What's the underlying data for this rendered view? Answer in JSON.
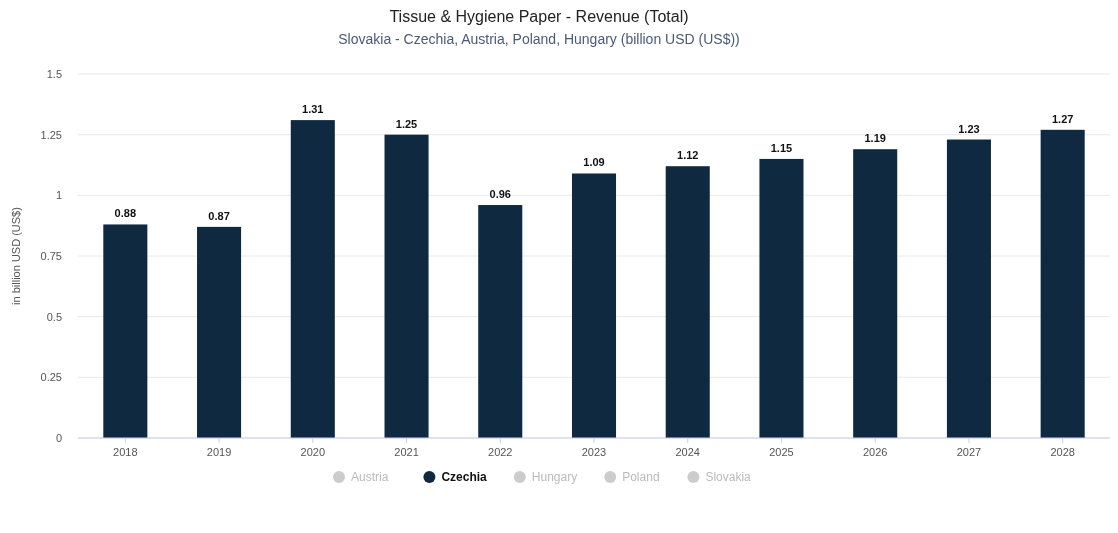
{
  "chart_data": {
    "type": "bar",
    "title": "Tissue & Hygiene Paper - Revenue (Total)",
    "subtitle": "Slovakia - Czechia, Austria, Poland, Hungary (billion USD (US$))",
    "ylabel": "in billion USD (US$)",
    "categories": [
      "2018",
      "2019",
      "2020",
      "2021",
      "2022",
      "2023",
      "2024",
      "2025",
      "2026",
      "2027",
      "2028"
    ],
    "series": [
      {
        "name": "Austria",
        "color": "#cccccc",
        "values": [
          null,
          null,
          null,
          null,
          null,
          null,
          null,
          null,
          null,
          null,
          null
        ]
      },
      {
        "name": "Czechia",
        "color": "#0f2940",
        "values": [
          0.88,
          0.87,
          1.31,
          1.25,
          0.96,
          1.09,
          1.12,
          1.15,
          1.19,
          1.23,
          1.27
        ]
      },
      {
        "name": "Hungary",
        "color": "#cccccc",
        "values": [
          null,
          null,
          null,
          null,
          null,
          null,
          null,
          null,
          null,
          null,
          null
        ]
      },
      {
        "name": "Poland",
        "color": "#cccccc",
        "values": [
          null,
          null,
          null,
          null,
          null,
          null,
          null,
          null,
          null,
          null,
          null
        ]
      },
      {
        "name": "Slovakia",
        "color": "#cccccc",
        "values": [
          null,
          null,
          null,
          null,
          null,
          null,
          null,
          null,
          null,
          null,
          null
        ]
      }
    ],
    "ylim": [
      0,
      1.5
    ],
    "yticks": [
      0,
      0.25,
      0.5,
      0.75,
      1,
      1.25,
      1.5
    ],
    "grid": "y",
    "data_labels": true,
    "legend": "bottom"
  }
}
